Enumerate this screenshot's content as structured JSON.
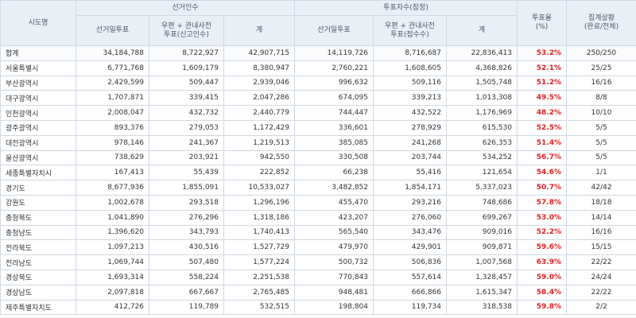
{
  "header": {
    "region": "시도명",
    "electors_group": "선거인수",
    "voters_group": "투표자수(잠정)",
    "turnout": "투표율\n(%)",
    "status": "집계상황\n(완료/전체)",
    "electors_cols": [
      "선거일투표",
      "우편 + 관내사전\n투표(신고인수)",
      "계"
    ],
    "voters_cols": [
      "선거일투표",
      "우편 + 관내사전\n투표(접수수)",
      "계"
    ]
  },
  "rows": [
    {
      "region": "합계",
      "e_day": "34,184,788",
      "e_mail": "8,722,927",
      "e_total": "42,907,715",
      "v_day": "14,119,726",
      "v_mail": "8,716,687",
      "v_total": "22,836,413",
      "rate": "53.2%",
      "status": "250/250"
    },
    {
      "region": "서울특별시",
      "e_day": "6,771,768",
      "e_mail": "1,609,179",
      "e_total": "8,380,947",
      "v_day": "2,760,221",
      "v_mail": "1,608,605",
      "v_total": "4,368,826",
      "rate": "52.1%",
      "status": "25/25"
    },
    {
      "region": "부산광역시",
      "e_day": "2,429,599",
      "e_mail": "509,447",
      "e_total": "2,939,046",
      "v_day": "996,632",
      "v_mail": "509,116",
      "v_total": "1,505,748",
      "rate": "51.2%",
      "status": "16/16"
    },
    {
      "region": "대구광역시",
      "e_day": "1,707,871",
      "e_mail": "339,415",
      "e_total": "2,047,286",
      "v_day": "674,095",
      "v_mail": "339,213",
      "v_total": "1,013,308",
      "rate": "49.5%",
      "status": "8/8"
    },
    {
      "region": "인천광역시",
      "e_day": "2,008,047",
      "e_mail": "432,732",
      "e_total": "2,440,779",
      "v_day": "744,447",
      "v_mail": "432,522",
      "v_total": "1,176,969",
      "rate": "48.2%",
      "status": "10/10"
    },
    {
      "region": "광주광역시",
      "e_day": "893,376",
      "e_mail": "279,053",
      "e_total": "1,172,429",
      "v_day": "336,601",
      "v_mail": "278,929",
      "v_total": "615,530",
      "rate": "52.5%",
      "status": "5/5"
    },
    {
      "region": "대전광역시",
      "e_day": "978,146",
      "e_mail": "241,367",
      "e_total": "1,219,513",
      "v_day": "385,085",
      "v_mail": "241,268",
      "v_total": "626,353",
      "rate": "51.4%",
      "status": "5/5"
    },
    {
      "region": "울산광역시",
      "e_day": "738,629",
      "e_mail": "203,921",
      "e_total": "942,550",
      "v_day": "330,508",
      "v_mail": "203,744",
      "v_total": "534,252",
      "rate": "56.7%",
      "status": "5/5"
    },
    {
      "region": "세종특별자치시",
      "e_day": "167,413",
      "e_mail": "55,439",
      "e_total": "222,852",
      "v_day": "66,238",
      "v_mail": "55,416",
      "v_total": "121,654",
      "rate": "54.6%",
      "status": "1/1"
    },
    {
      "region": "경기도",
      "e_day": "8,677,936",
      "e_mail": "1,855,091",
      "e_total": "10,533,027",
      "v_day": "3,482,852",
      "v_mail": "1,854,171",
      "v_total": "5,337,023",
      "rate": "50.7%",
      "status": "42/42"
    },
    {
      "region": "강원도",
      "e_day": "1,002,678",
      "e_mail": "293,518",
      "e_total": "1,296,196",
      "v_day": "455,470",
      "v_mail": "293,216",
      "v_total": "748,686",
      "rate": "57.8%",
      "status": "18/18"
    },
    {
      "region": "충청북도",
      "e_day": "1,041,890",
      "e_mail": "276,296",
      "e_total": "1,318,186",
      "v_day": "423,207",
      "v_mail": "276,060",
      "v_total": "699,267",
      "rate": "53.0%",
      "status": "14/14"
    },
    {
      "region": "충청남도",
      "e_day": "1,396,620",
      "e_mail": "343,793",
      "e_total": "1,740,413",
      "v_day": "565,540",
      "v_mail": "343,476",
      "v_total": "909,016",
      "rate": "52.2%",
      "status": "16/16"
    },
    {
      "region": "전라북도",
      "e_day": "1,097,213",
      "e_mail": "430,516",
      "e_total": "1,527,729",
      "v_day": "479,970",
      "v_mail": "429,901",
      "v_total": "909,871",
      "rate": "59.6%",
      "status": "15/15"
    },
    {
      "region": "전라남도",
      "e_day": "1,069,744",
      "e_mail": "507,480",
      "e_total": "1,577,224",
      "v_day": "500,732",
      "v_mail": "506,836",
      "v_total": "1,007,568",
      "rate": "63.9%",
      "status": "22/22"
    },
    {
      "region": "경상북도",
      "e_day": "1,693,314",
      "e_mail": "558,224",
      "e_total": "2,251,538",
      "v_day": "770,843",
      "v_mail": "557,614",
      "v_total": "1,328,457",
      "rate": "59.0%",
      "status": "24/24"
    },
    {
      "region": "경상남도",
      "e_day": "2,097,818",
      "e_mail": "667,667",
      "e_total": "2,765,485",
      "v_day": "948,481",
      "v_mail": "666,866",
      "v_total": "1,615,347",
      "rate": "58.4%",
      "status": "22/22"
    },
    {
      "region": "제주특별자치도",
      "e_day": "412,726",
      "e_mail": "119,789",
      "e_total": "532,515",
      "v_day": "198,804",
      "v_mail": "119,734",
      "v_total": "318,538",
      "rate": "59.8%",
      "status": "2/2"
    }
  ]
}
